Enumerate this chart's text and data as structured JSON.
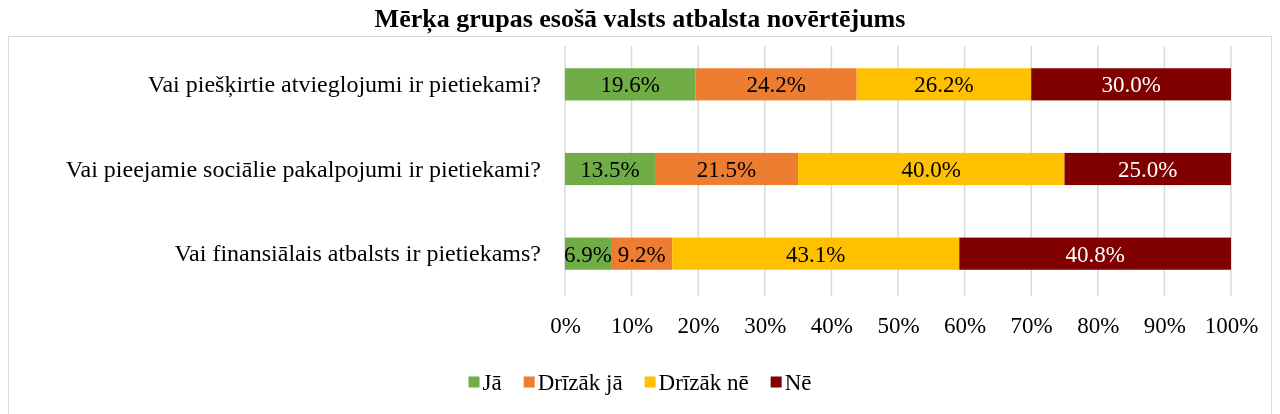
{
  "chart_data": {
    "type": "bar",
    "title": "Mērķa grupas esošā valsts atbalsta novērtējums",
    "orientation": "horizontal",
    "stacked": true,
    "categories": [
      "Vai piešķirtie atvieglojumi ir pietiekami?",
      "Vai pieejamie sociālie pakalpojumi ir pietiekami?",
      "Vai finansiālais atbalsts ir pietiekams?"
    ],
    "series": [
      {
        "name": "Jā",
        "color": "#70ad47",
        "values": [
          19.6,
          13.5,
          6.9
        ],
        "value_labels": [
          "19.6%",
          "13.5%",
          "6.9%"
        ]
      },
      {
        "name": "Drīzāk jā",
        "color": "#ed7d31",
        "values": [
          24.2,
          21.5,
          9.2
        ],
        "value_labels": [
          "24.2%",
          "21.5%",
          "9.2%"
        ]
      },
      {
        "name": "Drīzāk nē",
        "color": "#ffc000",
        "values": [
          26.2,
          40.0,
          43.1
        ],
        "value_labels": [
          "26.2%",
          "40.0%",
          "43.1%"
        ]
      },
      {
        "name": "Nē",
        "color": "#800000",
        "values": [
          30.0,
          25.0,
          40.8
        ],
        "value_labels": [
          "30.0%",
          "25.0%",
          "40.8%"
        ]
      }
    ],
    "xlim": [
      0,
      100
    ],
    "xticks": [
      {
        "value": 0,
        "label": "0%"
      },
      {
        "value": 10,
        "label": "10%"
      },
      {
        "value": 20,
        "label": "20%"
      },
      {
        "value": 30,
        "label": "30%"
      },
      {
        "value": 40,
        "label": "40%"
      },
      {
        "value": 50,
        "label": "50%"
      },
      {
        "value": 60,
        "label": "60%"
      },
      {
        "value": 70,
        "label": "70%"
      },
      {
        "value": 80,
        "label": "80%"
      },
      {
        "value": 90,
        "label": "90%"
      },
      {
        "value": 100,
        "label": "100%"
      }
    ],
    "grid": "x",
    "legend": "bottom"
  }
}
